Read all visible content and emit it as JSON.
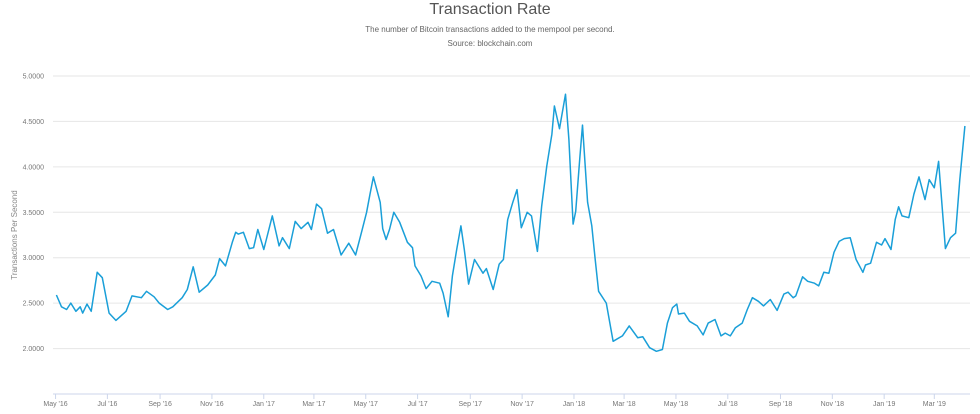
{
  "chart_data": {
    "type": "line",
    "title": "Transaction Rate",
    "subtitle": "The number of Bitcoin transactions added to the mempool per second.",
    "source": "Source: blockchain.com",
    "xlabel": "",
    "ylabel": "Transactions Per Second",
    "ylim": [
      1.5,
      5.0
    ],
    "xlim": [
      "2016-04-28",
      "2019-04-12"
    ],
    "grid": true,
    "line_color": "#1a9fd8",
    "yticks": [
      "2.0000",
      "2.5000",
      "3.0000",
      "3.5000",
      "4.0000",
      "4.5000",
      "5.0000"
    ],
    "ytick_values": [
      2.0,
      2.5,
      3.0,
      3.5,
      4.0,
      4.5,
      5.0
    ],
    "xticks": [
      "May '16",
      "Jul '16",
      "Sep '16",
      "Nov '16",
      "Jan '17",
      "Mar '17",
      "May '17",
      "Jul '17",
      "Sep '17",
      "Nov '17",
      "Jan '18",
      "Mar '18",
      "May '18",
      "Jul '18",
      "Sep '18",
      "Nov '18",
      "Jan '19",
      "Mar '19"
    ],
    "xtick_dates": [
      "2016-05-01",
      "2016-07-01",
      "2016-09-01",
      "2016-11-01",
      "2017-01-01",
      "2017-03-01",
      "2017-05-01",
      "2017-07-01",
      "2017-09-01",
      "2017-11-01",
      "2018-01-01",
      "2018-03-01",
      "2018-05-01",
      "2018-07-01",
      "2018-09-01",
      "2018-11-01",
      "2019-01-01",
      "2019-03-01"
    ],
    "series": [
      {
        "x": [
          "2016-05-02",
          "2016-05-08",
          "2016-05-14",
          "2016-05-19",
          "2016-05-25",
          "2016-05-30",
          "2016-06-02",
          "2016-06-07",
          "2016-06-12",
          "2016-06-19",
          "2016-06-25",
          "2016-07-03",
          "2016-07-11",
          "2016-07-23",
          "2016-07-30",
          "2016-08-10",
          "2016-08-16",
          "2016-08-25",
          "2016-08-31",
          "2016-09-10",
          "2016-09-16",
          "2016-09-27",
          "2016-10-03",
          "2016-10-10",
          "2016-10-17",
          "2016-10-27",
          "2016-11-05",
          "2016-11-10",
          "2016-11-17",
          "2016-11-25",
          "2016-11-29",
          "2016-12-02",
          "2016-12-08",
          "2016-12-15",
          "2016-12-20",
          "2016-12-25",
          "2017-01-01",
          "2017-01-11",
          "2017-01-19",
          "2017-01-23",
          "2017-01-31",
          "2017-02-07",
          "2017-02-14",
          "2017-02-22",
          "2017-02-26",
          "2017-03-04",
          "2017-03-10",
          "2017-03-17",
          "2017-03-24",
          "2017-04-02",
          "2017-04-11",
          "2017-04-19",
          "2017-04-26",
          "2017-05-02",
          "2017-05-06",
          "2017-05-10",
          "2017-05-18",
          "2017-05-21",
          "2017-05-25",
          "2017-05-29",
          "2017-06-03",
          "2017-06-10",
          "2017-06-19",
          "2017-06-25",
          "2017-06-28",
          "2017-07-05",
          "2017-07-11",
          "2017-07-18",
          "2017-07-27",
          "2017-07-31",
          "2017-08-06",
          "2017-08-11",
          "2017-08-16",
          "2017-08-21",
          "2017-08-25",
          "2017-08-30",
          "2017-09-06",
          "2017-09-16",
          "2017-09-20",
          "2017-09-28",
          "2017-10-05",
          "2017-10-10",
          "2017-10-15",
          "2017-10-21",
          "2017-10-26",
          "2017-10-31",
          "2017-11-07",
          "2017-11-12",
          "2017-11-19",
          "2017-11-24",
          "2017-11-30",
          "2017-12-06",
          "2017-12-09",
          "2017-12-15",
          "2017-12-22",
          "2017-12-26",
          "2017-12-31",
          "2018-01-03",
          "2018-01-08",
          "2018-01-11",
          "2018-01-17",
          "2018-01-22",
          "2018-01-26",
          "2018-01-30",
          "2018-02-08",
          "2018-02-16",
          "2018-02-27",
          "2018-03-07",
          "2018-03-17",
          "2018-03-23",
          "2018-03-31",
          "2018-04-08",
          "2018-04-15",
          "2018-04-21",
          "2018-04-27",
          "2018-05-02",
          "2018-05-04",
          "2018-05-11",
          "2018-05-17",
          "2018-05-26",
          "2018-06-02",
          "2018-06-08",
          "2018-06-16",
          "2018-06-23",
          "2018-06-28",
          "2018-07-04",
          "2018-07-10",
          "2018-07-18",
          "2018-07-24",
          "2018-07-30",
          "2018-08-06",
          "2018-08-12",
          "2018-08-20",
          "2018-08-28",
          "2018-09-05",
          "2018-09-10",
          "2018-09-16",
          "2018-09-19",
          "2018-09-27",
          "2018-10-03",
          "2018-10-11",
          "2018-10-16",
          "2018-10-22",
          "2018-10-28",
          "2018-11-03",
          "2018-11-09",
          "2018-11-15",
          "2018-11-22",
          "2018-11-29",
          "2018-12-07",
          "2018-12-10",
          "2018-12-16",
          "2018-12-23",
          "2018-12-29",
          "2019-01-02",
          "2019-01-09",
          "2019-01-14",
          "2019-01-18",
          "2019-01-22",
          "2019-01-30",
          "2019-02-05",
          "2019-02-11",
          "2019-02-18",
          "2019-02-23",
          "2019-03-01",
          "2019-03-06",
          "2019-03-14",
          "2019-03-20",
          "2019-03-26",
          "2019-03-31",
          "2019-04-06"
        ],
        "values": [
          2.59,
          2.46,
          2.43,
          2.5,
          2.41,
          2.46,
          2.39,
          2.49,
          2.41,
          2.84,
          2.78,
          2.39,
          2.31,
          2.41,
          2.58,
          2.56,
          2.63,
          2.57,
          2.5,
          2.43,
          2.46,
          2.56,
          2.65,
          2.9,
          2.62,
          2.7,
          2.81,
          2.99,
          2.91,
          3.17,
          3.28,
          3.26,
          3.28,
          3.1,
          3.11,
          3.31,
          3.09,
          3.46,
          3.13,
          3.22,
          3.1,
          3.4,
          3.32,
          3.39,
          3.31,
          3.59,
          3.54,
          3.27,
          3.31,
          3.03,
          3.16,
          3.03,
          3.28,
          3.5,
          3.7,
          3.89,
          3.61,
          3.32,
          3.2,
          3.31,
          3.5,
          3.39,
          3.17,
          3.11,
          2.91,
          2.8,
          2.66,
          2.74,
          2.72,
          2.61,
          2.35,
          2.8,
          3.09,
          3.35,
          3.09,
          2.71,
          2.98,
          2.83,
          2.88,
          2.65,
          2.93,
          2.98,
          3.42,
          3.61,
          3.75,
          3.33,
          3.5,
          3.46,
          3.07,
          3.57,
          4.01,
          4.36,
          4.67,
          4.42,
          4.8,
          4.3,
          3.37,
          3.51,
          4.11,
          4.46,
          3.61,
          3.35,
          2.98,
          2.63,
          2.5,
          2.08,
          2.14,
          2.25,
          2.12,
          2.13,
          2.01,
          1.97,
          1.99,
          2.28,
          2.45,
          2.49,
          2.38,
          2.39,
          2.3,
          2.25,
          2.15,
          2.28,
          2.32,
          2.14,
          2.17,
          2.14,
          2.23,
          2.28,
          2.43,
          2.56,
          2.52,
          2.47,
          2.54,
          2.42,
          2.6,
          2.62,
          2.56,
          2.58,
          2.79,
          2.74,
          2.72,
          2.69,
          2.84,
          2.83,
          3.06,
          3.18,
          3.21,
          3.22,
          2.98,
          2.84,
          2.92,
          2.94,
          3.17,
          3.14,
          3.21,
          3.09,
          3.42,
          3.56,
          3.46,
          3.44,
          3.7,
          3.89,
          3.64,
          3.86,
          3.77,
          4.06,
          3.1,
          3.22,
          3.27,
          3.86,
          4.45
        ]
      }
    ]
  }
}
